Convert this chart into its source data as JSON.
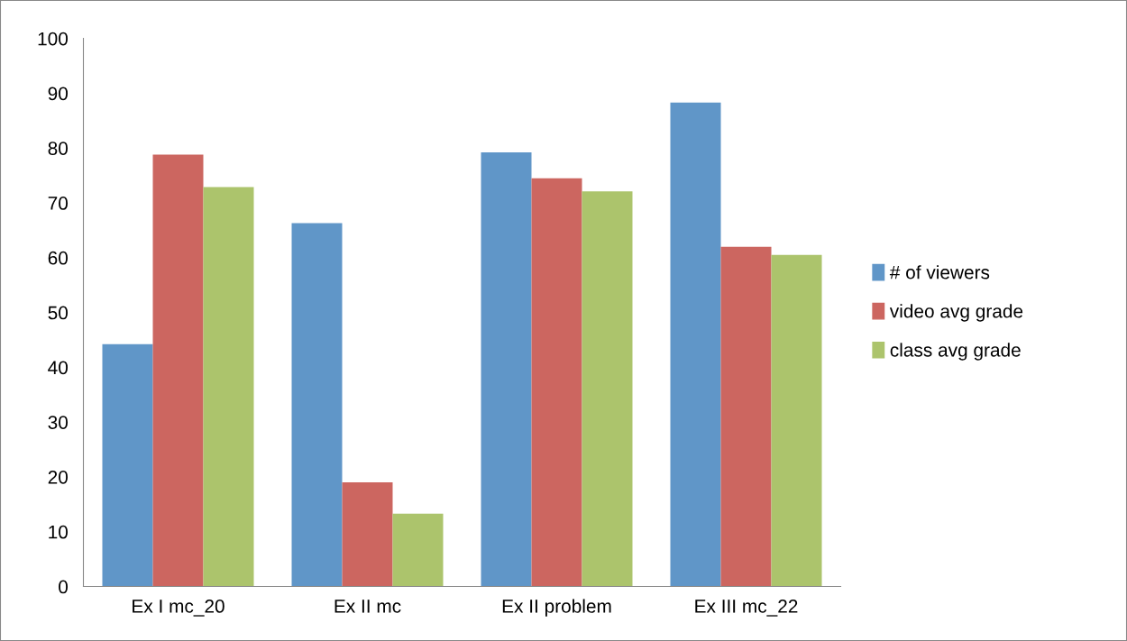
{
  "chart_data": {
    "type": "bar",
    "categories": [
      "Ex I mc_20",
      "Ex II mc",
      "Ex II problem",
      "Ex III mc_22"
    ],
    "series": [
      {
        "name": "# of viewers",
        "color": "#6096c8",
        "values": [
          44.2,
          66.3,
          79.2,
          88.3
        ]
      },
      {
        "name": "video avg grade",
        "color": "#cc6660",
        "values": [
          78.8,
          19.0,
          74.5,
          62.0
        ]
      },
      {
        "name": "class avg grade",
        "color": "#acc46c",
        "values": [
          72.9,
          13.3,
          72.1,
          60.5
        ]
      }
    ],
    "ylim": [
      0,
      100
    ],
    "yticks": [
      0,
      10,
      20,
      30,
      40,
      50,
      60,
      70,
      80,
      90,
      100
    ],
    "grid": false,
    "legend": "right"
  }
}
